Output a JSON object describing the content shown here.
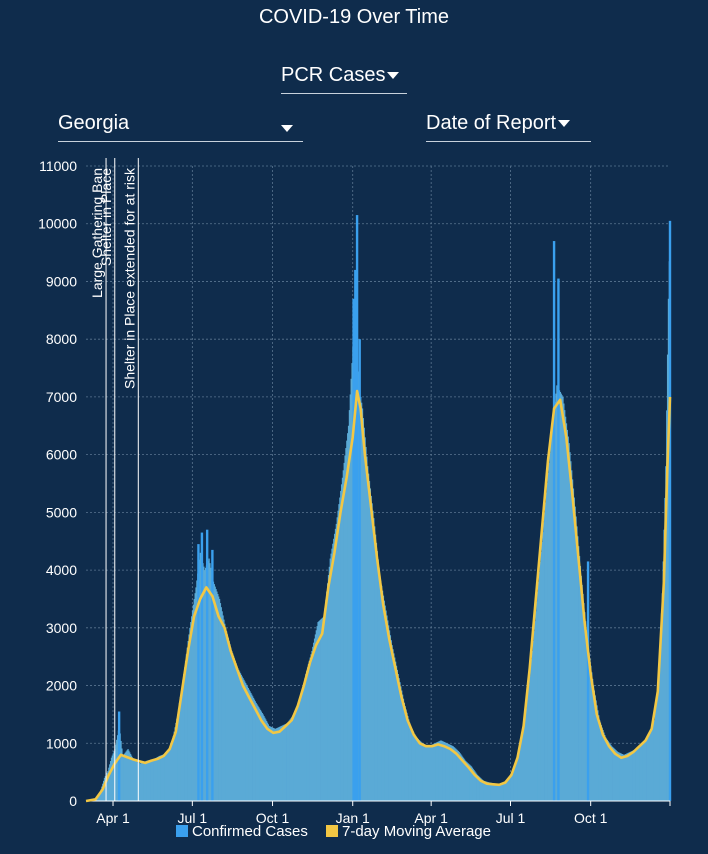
{
  "header": {
    "title": "COVID-19 Over Time",
    "metric_dropdown": "PCR Cases",
    "region_dropdown": "Georgia",
    "date_type_dropdown": "Date of Report"
  },
  "colors": {
    "background": "#0f2c4c",
    "bar": "#5aaad6",
    "bar_spike": "#3aa0ee",
    "moving_average": "#f2c744",
    "grid": "#5a7590"
  },
  "chart_data": {
    "type": "bar",
    "title": "",
    "xlabel": "",
    "ylabel": "",
    "x_start": "2020-03-01",
    "x_end": "2021-12-31",
    "ylim": [
      0,
      11000
    ],
    "y_ticks": [
      0,
      1000,
      2000,
      3000,
      4000,
      5000,
      6000,
      7000,
      8000,
      9000,
      10000,
      11000
    ],
    "x_ticks": [
      {
        "date": "2020-04-01",
        "label": "Apr 1"
      },
      {
        "date": "2020-07-01",
        "label": "Jul 1"
      },
      {
        "date": "2020-10-01",
        "label": "Oct 1"
      },
      {
        "date": "2021-01-01",
        "label": "Jan 1"
      },
      {
        "date": "2021-04-01",
        "label": "Apr 1"
      },
      {
        "date": "2021-07-01",
        "label": "Jul 1"
      },
      {
        "date": "2021-10-01",
        "label": "Oct 1"
      }
    ],
    "grid": true,
    "legend_position": "bottom",
    "series": [
      {
        "name": "Confirmed Cases",
        "type": "bar",
        "points": [
          [
            "2020-03-01",
            0
          ],
          [
            "2020-03-10",
            20
          ],
          [
            "2020-03-17",
            150
          ],
          [
            "2020-03-22",
            400
          ],
          [
            "2020-03-26",
            520
          ],
          [
            "2020-03-30",
            750
          ],
          [
            "2020-04-03",
            900
          ],
          [
            "2020-04-08",
            1300
          ],
          [
            "2020-04-12",
            780
          ],
          [
            "2020-04-18",
            900
          ],
          [
            "2020-04-25",
            700
          ],
          [
            "2020-05-02",
            650
          ],
          [
            "2020-05-10",
            700
          ],
          [
            "2020-05-17",
            720
          ],
          [
            "2020-05-24",
            780
          ],
          [
            "2020-05-31",
            820
          ],
          [
            "2020-06-07",
            980
          ],
          [
            "2020-06-14",
            1500
          ],
          [
            "2020-06-21",
            2200
          ],
          [
            "2020-06-28",
            3000
          ],
          [
            "2020-07-05",
            3700
          ],
          [
            "2020-07-10",
            4300
          ],
          [
            "2020-07-15",
            4000
          ],
          [
            "2020-07-20",
            4200
          ],
          [
            "2020-07-25",
            3800
          ],
          [
            "2020-08-01",
            3500
          ],
          [
            "2020-08-08",
            3000
          ],
          [
            "2020-08-15",
            2600
          ],
          [
            "2020-08-22",
            2300
          ],
          [
            "2020-08-29",
            2100
          ],
          [
            "2020-09-05",
            1900
          ],
          [
            "2020-09-12",
            1700
          ],
          [
            "2020-09-20",
            1500
          ],
          [
            "2020-09-27",
            1300
          ],
          [
            "2020-10-04",
            1250
          ],
          [
            "2020-10-11",
            1300
          ],
          [
            "2020-10-18",
            1350
          ],
          [
            "2020-10-25",
            1500
          ],
          [
            "2020-11-01",
            1700
          ],
          [
            "2020-11-08",
            2200
          ],
          [
            "2020-11-15",
            2600
          ],
          [
            "2020-11-22",
            3100
          ],
          [
            "2020-11-29",
            3200
          ],
          [
            "2020-12-06",
            4200
          ],
          [
            "2020-12-13",
            4800
          ],
          [
            "2020-12-20",
            5600
          ],
          [
            "2020-12-27",
            6500
          ],
          [
            "2021-01-03",
            8400
          ],
          [
            "2021-01-08",
            7200
          ],
          [
            "2021-01-12",
            6800
          ],
          [
            "2021-01-18",
            5800
          ],
          [
            "2021-01-25",
            4900
          ],
          [
            "2021-02-01",
            3900
          ],
          [
            "2021-02-08",
            3300
          ],
          [
            "2021-02-15",
            2700
          ],
          [
            "2021-02-22",
            2200
          ],
          [
            "2021-03-01",
            1700
          ],
          [
            "2021-03-08",
            1300
          ],
          [
            "2021-03-15",
            1100
          ],
          [
            "2021-03-22",
            1000
          ],
          [
            "2021-03-29",
            950
          ],
          [
            "2021-04-05",
            1000
          ],
          [
            "2021-04-12",
            1050
          ],
          [
            "2021-04-19",
            1000
          ],
          [
            "2021-04-26",
            950
          ],
          [
            "2021-05-03",
            850
          ],
          [
            "2021-05-10",
            700
          ],
          [
            "2021-05-17",
            600
          ],
          [
            "2021-05-24",
            450
          ],
          [
            "2021-05-31",
            350
          ],
          [
            "2021-06-07",
            320
          ],
          [
            "2021-06-14",
            300
          ],
          [
            "2021-06-21",
            300
          ],
          [
            "2021-06-28",
            380
          ],
          [
            "2021-07-05",
            550
          ],
          [
            "2021-07-12",
            900
          ],
          [
            "2021-07-19",
            1600
          ],
          [
            "2021-07-26",
            2600
          ],
          [
            "2021-08-02",
            3800
          ],
          [
            "2021-08-09",
            5000
          ],
          [
            "2021-08-16",
            6200
          ],
          [
            "2021-08-23",
            7200
          ],
          [
            "2021-08-30",
            7000
          ],
          [
            "2021-09-06",
            6200
          ],
          [
            "2021-09-13",
            5100
          ],
          [
            "2021-09-20",
            3900
          ],
          [
            "2021-09-27",
            2800
          ],
          [
            "2021-10-04",
            2000
          ],
          [
            "2021-10-11",
            1400
          ],
          [
            "2021-10-18",
            1100
          ],
          [
            "2021-10-25",
            950
          ],
          [
            "2021-11-01",
            850
          ],
          [
            "2021-11-08",
            800
          ],
          [
            "2021-11-15",
            850
          ],
          [
            "2021-11-22",
            900
          ],
          [
            "2021-11-29",
            1000
          ],
          [
            "2021-12-06",
            1100
          ],
          [
            "2021-12-13",
            1400
          ],
          [
            "2021-12-18",
            2200
          ],
          [
            "2021-12-22",
            3600
          ],
          [
            "2021-12-26",
            5800
          ],
          [
            "2021-12-29",
            8700
          ],
          [
            "2021-12-31",
            10000
          ]
        ],
        "spikes": [
          [
            "2020-04-08",
            1550
          ],
          [
            "2020-07-08",
            4450
          ],
          [
            "2020-07-12",
            4650
          ],
          [
            "2020-07-18",
            4700
          ],
          [
            "2020-07-24",
            4350
          ],
          [
            "2021-01-02",
            8700
          ],
          [
            "2021-01-04",
            9200
          ],
          [
            "2021-01-06",
            10150
          ],
          [
            "2021-01-09",
            8000
          ],
          [
            "2021-08-20",
            9700
          ],
          [
            "2021-08-25",
            9050
          ],
          [
            "2021-09-28",
            4150
          ],
          [
            "2021-12-31",
            10050
          ]
        ]
      },
      {
        "name": "7-day Moving Average",
        "type": "line",
        "points": [
          [
            "2020-03-01",
            0
          ],
          [
            "2020-03-12",
            30
          ],
          [
            "2020-03-20",
            200
          ],
          [
            "2020-03-27",
            450
          ],
          [
            "2020-04-03",
            650
          ],
          [
            "2020-04-10",
            800
          ],
          [
            "2020-04-17",
            760
          ],
          [
            "2020-04-24",
            720
          ],
          [
            "2020-05-01",
            690
          ],
          [
            "2020-05-08",
            660
          ],
          [
            "2020-05-15",
            700
          ],
          [
            "2020-05-22",
            730
          ],
          [
            "2020-05-29",
            780
          ],
          [
            "2020-06-05",
            900
          ],
          [
            "2020-06-12",
            1200
          ],
          [
            "2020-06-19",
            1900
          ],
          [
            "2020-06-26",
            2600
          ],
          [
            "2020-07-03",
            3200
          ],
          [
            "2020-07-10",
            3500
          ],
          [
            "2020-07-17",
            3700
          ],
          [
            "2020-07-24",
            3550
          ],
          [
            "2020-07-31",
            3200
          ],
          [
            "2020-08-07",
            3000
          ],
          [
            "2020-08-14",
            2600
          ],
          [
            "2020-08-21",
            2300
          ],
          [
            "2020-08-28",
            2000
          ],
          [
            "2020-09-04",
            1800
          ],
          [
            "2020-09-11",
            1600
          ],
          [
            "2020-09-18",
            1400
          ],
          [
            "2020-09-25",
            1250
          ],
          [
            "2020-10-02",
            1180
          ],
          [
            "2020-10-09",
            1200
          ],
          [
            "2020-10-16",
            1300
          ],
          [
            "2020-10-23",
            1400
          ],
          [
            "2020-10-30",
            1650
          ],
          [
            "2020-11-06",
            2000
          ],
          [
            "2020-11-13",
            2400
          ],
          [
            "2020-11-20",
            2700
          ],
          [
            "2020-11-27",
            2900
          ],
          [
            "2020-12-04",
            3700
          ],
          [
            "2020-12-11",
            4300
          ],
          [
            "2020-12-18",
            5000
          ],
          [
            "2020-12-25",
            5600
          ],
          [
            "2021-01-01",
            6300
          ],
          [
            "2021-01-06",
            7100
          ],
          [
            "2021-01-10",
            6800
          ],
          [
            "2021-01-15",
            6000
          ],
          [
            "2021-01-22",
            5100
          ],
          [
            "2021-01-29",
            4200
          ],
          [
            "2021-02-05",
            3400
          ],
          [
            "2021-02-12",
            2800
          ],
          [
            "2021-02-19",
            2300
          ],
          [
            "2021-02-26",
            1800
          ],
          [
            "2021-03-05",
            1400
          ],
          [
            "2021-03-12",
            1150
          ],
          [
            "2021-03-19",
            1000
          ],
          [
            "2021-03-26",
            950
          ],
          [
            "2021-04-02",
            950
          ],
          [
            "2021-04-09",
            980
          ],
          [
            "2021-04-16",
            950
          ],
          [
            "2021-04-23",
            900
          ],
          [
            "2021-04-30",
            820
          ],
          [
            "2021-05-07",
            700
          ],
          [
            "2021-05-14",
            580
          ],
          [
            "2021-05-21",
            450
          ],
          [
            "2021-05-28",
            350
          ],
          [
            "2021-06-04",
            300
          ],
          [
            "2021-06-11",
            290
          ],
          [
            "2021-06-18",
            280
          ],
          [
            "2021-06-25",
            320
          ],
          [
            "2021-07-02",
            450
          ],
          [
            "2021-07-09",
            750
          ],
          [
            "2021-07-16",
            1300
          ],
          [
            "2021-07-23",
            2300
          ],
          [
            "2021-07-30",
            3500
          ],
          [
            "2021-08-06",
            4700
          ],
          [
            "2021-08-13",
            5900
          ],
          [
            "2021-08-20",
            6800
          ],
          [
            "2021-08-27",
            6950
          ],
          [
            "2021-09-03",
            6300
          ],
          [
            "2021-09-10",
            5300
          ],
          [
            "2021-09-17",
            4200
          ],
          [
            "2021-09-24",
            3100
          ],
          [
            "2021-10-01",
            2200
          ],
          [
            "2021-10-08",
            1500
          ],
          [
            "2021-10-15",
            1150
          ],
          [
            "2021-10-22",
            950
          ],
          [
            "2021-10-29",
            820
          ],
          [
            "2021-11-05",
            750
          ],
          [
            "2021-11-12",
            780
          ],
          [
            "2021-11-19",
            850
          ],
          [
            "2021-11-26",
            950
          ],
          [
            "2021-12-03",
            1050
          ],
          [
            "2021-12-10",
            1250
          ],
          [
            "2021-12-17",
            1900
          ],
          [
            "2021-12-24",
            3800
          ],
          [
            "2021-12-28",
            5800
          ],
          [
            "2021-12-31",
            7000
          ]
        ]
      }
    ],
    "annotations": [
      {
        "date": "2020-03-24",
        "label": "Large Gathering Ban"
      },
      {
        "date": "2020-04-03",
        "label": "Shelter in Place"
      },
      {
        "date": "2020-04-30",
        "label": "Shelter in Place extended for at risk"
      }
    ]
  }
}
